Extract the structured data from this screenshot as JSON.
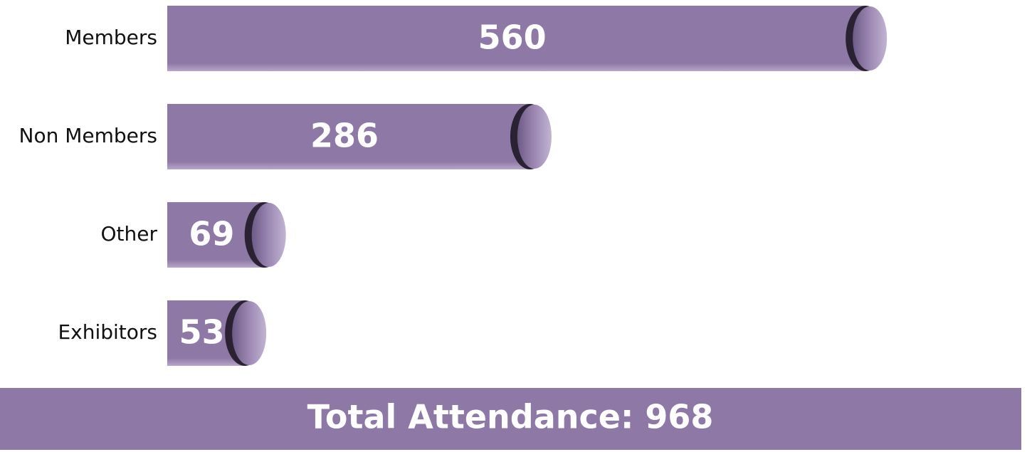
{
  "chart_data": {
    "type": "bar",
    "categories": [
      "Members",
      "Non Members",
      "Other",
      "Exhibitors"
    ],
    "values": [
      560,
      286,
      69,
      53
    ],
    "color": "#8e78a6",
    "annotation": "Total Attendance: 968"
  }
}
